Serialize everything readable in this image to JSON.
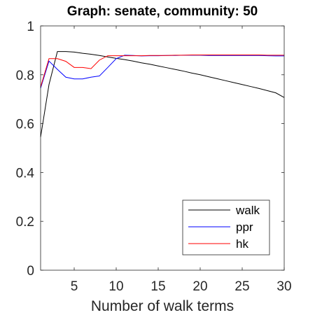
{
  "chart_data": {
    "type": "line",
    "title": "Graph: senate, community: 50",
    "xlabel": "Number of walk terms",
    "ylabel": "",
    "xlim": [
      1,
      30
    ],
    "ylim": [
      0,
      1
    ],
    "xticks": [
      5,
      10,
      15,
      20,
      25,
      30
    ],
    "yticks": [
      0,
      0.2,
      0.4,
      0.6,
      0.8,
      1
    ],
    "ytick_labels": [
      "0",
      "0.2",
      "0.4",
      "0.6",
      "0.8",
      "1"
    ],
    "grid": false,
    "legend_position": "bottom-right",
    "series": [
      {
        "name": "walk",
        "color": "#000000",
        "x": [
          1,
          2,
          3,
          4,
          5,
          6,
          7,
          8,
          9,
          10,
          11,
          12,
          13,
          14,
          15,
          16,
          17,
          18,
          19,
          20,
          21,
          22,
          23,
          24,
          25,
          26,
          27,
          28,
          29,
          30
        ],
        "y": [
          0.545,
          0.76,
          0.895,
          0.895,
          0.893,
          0.888,
          0.884,
          0.879,
          0.873,
          0.867,
          0.862,
          0.856,
          0.849,
          0.843,
          0.836,
          0.829,
          0.822,
          0.815,
          0.807,
          0.8,
          0.792,
          0.784,
          0.776,
          0.768,
          0.76,
          0.752,
          0.744,
          0.735,
          0.726,
          0.707
        ]
      },
      {
        "name": "ppr",
        "color": "#0000ff",
        "x": [
          1,
          2,
          3,
          4,
          5,
          6,
          7,
          8,
          9,
          10,
          11,
          12,
          13,
          14,
          15,
          16,
          17,
          18,
          19,
          20,
          21,
          22,
          23,
          24,
          25,
          26,
          27,
          28,
          29,
          30
        ],
        "y": [
          0.745,
          0.856,
          0.822,
          0.79,
          0.783,
          0.783,
          0.79,
          0.795,
          0.83,
          0.866,
          0.88,
          0.879,
          0.877,
          0.878,
          0.878,
          0.879,
          0.879,
          0.88,
          0.88,
          0.88,
          0.879,
          0.879,
          0.879,
          0.879,
          0.879,
          0.879,
          0.879,
          0.878,
          0.877,
          0.877
        ]
      },
      {
        "name": "hk",
        "color": "#ff0000",
        "x": [
          1,
          2,
          3,
          4,
          5,
          6,
          7,
          8,
          9,
          10,
          11,
          12,
          13,
          14,
          15,
          16,
          17,
          18,
          19,
          20,
          21,
          22,
          23,
          24,
          25,
          26,
          27,
          28,
          29,
          30
        ],
        "y": [
          0.75,
          0.866,
          0.866,
          0.855,
          0.83,
          0.83,
          0.825,
          0.86,
          0.878,
          0.878,
          0.878,
          0.878,
          0.878,
          0.879,
          0.879,
          0.879,
          0.88,
          0.88,
          0.881,
          0.881,
          0.881,
          0.881,
          0.881,
          0.881,
          0.881,
          0.881,
          0.881,
          0.88,
          0.88,
          0.88
        ]
      }
    ]
  }
}
